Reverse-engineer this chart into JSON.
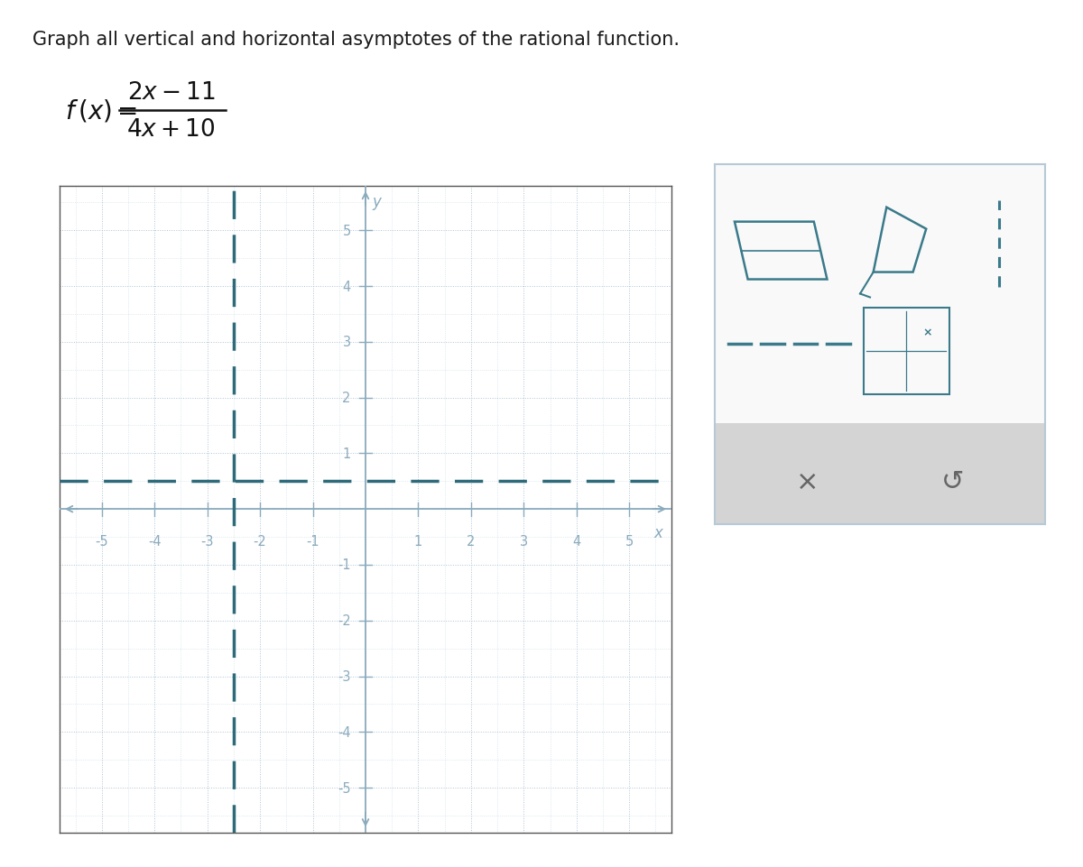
{
  "title": "Graph all vertical and horizontal asymptotes of the rational function.",
  "vertical_asymptote": -2.5,
  "horizontal_asymptote": 0.5,
  "xlim": [
    -5.8,
    5.8
  ],
  "ylim": [
    -5.8,
    5.8
  ],
  "x_ticks": [
    -5,
    -4,
    -3,
    -2,
    -1,
    1,
    2,
    3,
    4,
    5
  ],
  "y_ticks": [
    -5,
    -4,
    -3,
    -2,
    -1,
    1,
    2,
    3,
    4,
    5
  ],
  "grid_major_color": "#aec4d4",
  "grid_minor_color": "#c8dce8",
  "axis_color": "#8aabbd",
  "asymptote_color": "#2e6b7a",
  "asymptote_lw": 2.5,
  "title_fontsize": 15,
  "tick_fontsize": 10.5,
  "axis_label_fontsize": 12,
  "bg_color": "#ffffff",
  "panel_bg": "#f9f9f9",
  "panel_border": "#b5cad6",
  "panel_teal": "#3a7a8a",
  "panel_gray_bar": "#d4d4d4",
  "panel_gray_text": "#666666"
}
